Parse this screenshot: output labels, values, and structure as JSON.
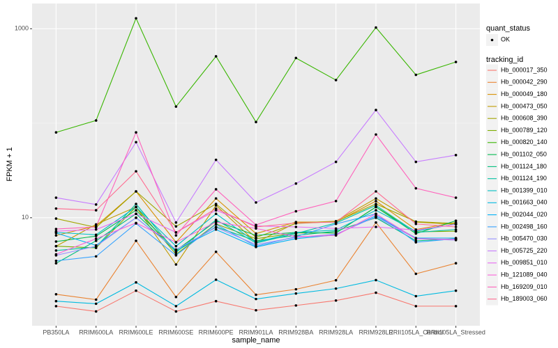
{
  "chart_data": {
    "type": "line",
    "x_label": "sample_name",
    "y_label": "FPKM + 1",
    "log_scale": true,
    "categories": [
      "PB350LA",
      "RRIM600LA",
      "RRIM600LE",
      "RRIM600SE",
      "RRIM600PE",
      "RRIM901LA",
      "RRIM928BA",
      "RRIM928LA",
      "RRIM928LE",
      "RRII105LA_Control",
      "RRII105LA_Stressed"
    ],
    "ylim": [
      0.72,
      1850
    ],
    "yticks": [
      10,
      1000
    ],
    "grid": true,
    "legend_position": "right",
    "point_legend": {
      "title": "quant_status",
      "entries": [
        "OK"
      ]
    },
    "legend_title": "tracking_id",
    "series": [
      {
        "name": "Hb_000017_350",
        "color": "#F8766D",
        "values": [
          1.16,
          1.02,
          1.69,
          1.02,
          1.31,
          1.05,
          1.18,
          1.33,
          1.61,
          1.16,
          1.16
        ]
      },
      {
        "name": "Hb_000042_290",
        "color": "#EA8331",
        "values": [
          1.55,
          1.36,
          5.7,
          1.45,
          4.36,
          1.53,
          1.75,
          2.18,
          8.9,
          2.55,
          3.3
        ]
      },
      {
        "name": "Hb_000049_180",
        "color": "#D89000",
        "values": [
          6.5,
          8.2,
          19,
          5.5,
          16,
          6.8,
          9,
          9,
          15,
          7.5,
          8.9
        ]
      },
      {
        "name": "Hb_000473_050",
        "color": "#C09B00",
        "values": [
          5,
          8.5,
          13,
          3.2,
          13.5,
          5.5,
          8.8,
          9.2,
          16,
          9,
          8.5
        ]
      },
      {
        "name": "Hb_000608_390",
        "color": "#A3A500",
        "values": [
          9.8,
          7.9,
          19,
          8.1,
          14,
          6.2,
          8.7,
          9.1,
          14,
          9.1,
          8.7
        ]
      },
      {
        "name": "Hb_000789_120",
        "color": "#7CAE00",
        "values": [
          5,
          4.8,
          13,
          4.1,
          8.6,
          6,
          6.9,
          6.9,
          13,
          7.1,
          7.2
        ]
      },
      {
        "name": "Hb_000820_140",
        "color": "#39B600",
        "values": [
          80,
          107,
          1290,
          150,
          510,
          103,
          490,
          286,
          1030,
          325,
          445
        ]
      },
      {
        "name": "Hb_001102_050",
        "color": "#00BB4E",
        "values": [
          5.6,
          6.4,
          12,
          4.5,
          9.2,
          6.5,
          7,
          6.9,
          13,
          6.8,
          9.3
        ]
      },
      {
        "name": "Hb_001124_180",
        "color": "#00BF7D",
        "values": [
          3.3,
          5.7,
          11,
          4.4,
          8,
          5.7,
          6.5,
          7.2,
          10,
          5.7,
          6
        ]
      },
      {
        "name": "Hb_001124_190",
        "color": "#00C1A3",
        "values": [
          4.5,
          4.9,
          14,
          4.3,
          9.5,
          5.4,
          6.8,
          8.8,
          13.5,
          7,
          7.5
        ]
      },
      {
        "name": "Hb_001399_010",
        "color": "#00BFC4",
        "values": [
          7,
          6.6,
          13,
          5,
          11,
          5.5,
          7,
          7.4,
          12,
          7.2,
          8.6
        ]
      },
      {
        "name": "Hb_001663_040",
        "color": "#00BAE0",
        "values": [
          1.31,
          1.23,
          2.07,
          1.16,
          2.21,
          1.38,
          1.58,
          1.78,
          2.19,
          1.48,
          1.69
        ]
      },
      {
        "name": "Hb_002044_020",
        "color": "#00B0F6",
        "values": [
          6.9,
          5.1,
          10,
          4.6,
          7.5,
          4.9,
          6,
          6.6,
          10.5,
          6.1,
          6.1
        ]
      },
      {
        "name": "Hb_002498_160",
        "color": "#35A2FF",
        "values": [
          3.5,
          3.9,
          8.7,
          4,
          8.5,
          5,
          6.3,
          8.6,
          11,
          5.5,
          6
        ]
      },
      {
        "name": "Hb_005470_030",
        "color": "#9590FF",
        "values": [
          4,
          5,
          10,
          4.6,
          7.9,
          5.2,
          6.2,
          6.7,
          10.2,
          6,
          5.8
        ]
      },
      {
        "name": "Hb_005725_220",
        "color": "#C77CFF",
        "values": [
          16.3,
          13.8,
          63,
          8.9,
          41,
          14.5,
          23,
          39,
          138,
          39,
          46
        ]
      },
      {
        "name": "Hb_009851_010",
        "color": "#E76BF3",
        "values": [
          7.2,
          7.5,
          11,
          7,
          12,
          8.2,
          8,
          7.7,
          8,
          7.4,
          8.5
        ]
      },
      {
        "name": "Hb_121089_040",
        "color": "#FA62DB",
        "values": [
          4.1,
          6,
          8.8,
          5.5,
          9,
          7.7,
          6.3,
          6.5,
          11,
          6,
          5.9
        ]
      },
      {
        "name": "Hb_169209_010",
        "color": "#FF62BC",
        "values": [
          7.6,
          8,
          80,
          6.5,
          20,
          8.4,
          11.7,
          15,
          76,
          20.5,
          16.3
        ]
      },
      {
        "name": "Hb_189003_060",
        "color": "#FF6C91",
        "values": [
          12.5,
          12,
          31,
          7,
          12.5,
          8,
          8.8,
          9,
          19,
          8.6,
          8
        ]
      }
    ]
  }
}
